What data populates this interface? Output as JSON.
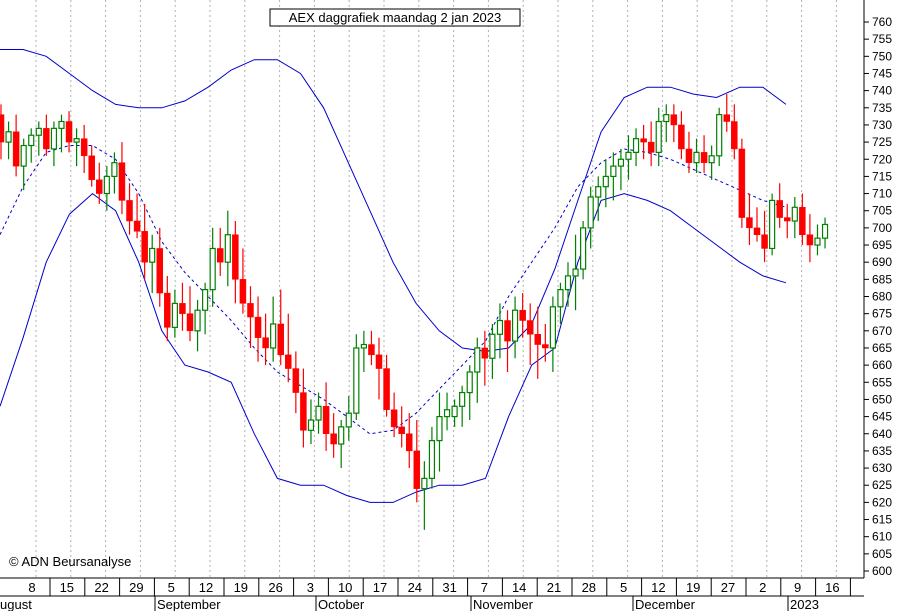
{
  "chart_data": {
    "type": "candlestick",
    "title": "AEX daggrafiek maandag 2 jan 2023",
    "copyright": "© ADN Beursanalyse",
    "ylim": [
      600,
      760
    ],
    "y_ticks": [
      600,
      605,
      610,
      615,
      620,
      625,
      630,
      635,
      640,
      645,
      650,
      655,
      660,
      665,
      670,
      675,
      680,
      685,
      690,
      695,
      700,
      705,
      710,
      715,
      720,
      725,
      730,
      735,
      740,
      745,
      750,
      755,
      760
    ],
    "x_ticks": [
      "8",
      "15",
      "22",
      "29",
      "5",
      "12",
      "19",
      "26",
      "3",
      "10",
      "17",
      "24",
      "31",
      "7",
      "14",
      "21",
      "28",
      "5",
      "12",
      "19",
      "27",
      "2",
      "9",
      "16"
    ],
    "months": [
      "ugust",
      "September",
      "October",
      "November",
      "December",
      "2023"
    ],
    "colors": {
      "up": "#008000",
      "down": "#ff0000",
      "band": "#0000cc",
      "grid": "#b0b0b0"
    },
    "candles": [
      [
        733,
        736,
        720,
        725
      ],
      [
        725,
        731,
        720,
        728
      ],
      [
        728,
        733,
        715,
        718
      ],
      [
        718,
        726,
        711,
        724
      ],
      [
        724,
        729,
        719,
        727
      ],
      [
        727,
        731,
        721,
        729
      ],
      [
        729,
        733,
        721,
        723
      ],
      [
        723,
        731,
        718,
        729
      ],
      [
        729,
        733,
        722,
        731
      ],
      [
        731,
        734,
        722,
        725
      ],
      [
        725,
        729,
        718,
        726
      ],
      [
        726,
        730,
        716,
        721
      ],
      [
        721,
        724,
        712,
        714
      ],
      [
        714,
        719,
        707,
        710
      ],
      [
        710,
        718,
        705,
        715
      ],
      [
        715,
        722,
        710,
        719
      ],
      [
        719,
        725,
        704,
        708
      ],
      [
        708,
        713,
        698,
        702
      ],
      [
        702,
        710,
        697,
        699
      ],
      [
        699,
        707,
        685,
        690
      ],
      [
        690,
        698,
        681,
        694
      ],
      [
        694,
        700,
        677,
        681
      ],
      [
        681,
        686,
        667,
        671
      ],
      [
        671,
        682,
        668,
        678
      ],
      [
        678,
        684,
        670,
        675
      ],
      [
        675,
        683,
        667,
        670
      ],
      [
        670,
        679,
        664,
        676
      ],
      [
        676,
        684,
        669,
        682
      ],
      [
        682,
        700,
        677,
        694
      ],
      [
        694,
        700,
        686,
        690
      ],
      [
        690,
        705,
        683,
        698
      ],
      [
        698,
        702,
        678,
        685
      ],
      [
        685,
        694,
        675,
        678
      ],
      [
        678,
        683,
        665,
        674
      ],
      [
        674,
        680,
        661,
        668
      ],
      [
        668,
        675,
        660,
        665
      ],
      [
        665,
        680,
        661,
        672
      ],
      [
        672,
        682,
        660,
        663
      ],
      [
        663,
        675,
        655,
        659
      ],
      [
        659,
        664,
        646,
        652
      ],
      [
        652,
        659,
        636,
        641
      ],
      [
        641,
        650,
        637,
        644
      ],
      [
        644,
        652,
        640,
        648
      ],
      [
        648,
        655,
        635,
        640
      ],
      [
        640,
        646,
        633,
        637
      ],
      [
        637,
        644,
        630,
        642
      ],
      [
        642,
        651,
        638,
        646
      ],
      [
        646,
        669,
        644,
        665
      ],
      [
        665,
        670,
        658,
        666
      ],
      [
        666,
        670,
        660,
        663
      ],
      [
        663,
        668,
        650,
        659
      ],
      [
        659,
        663,
        645,
        647
      ],
      [
        647,
        652,
        639,
        642
      ],
      [
        642,
        648,
        636,
        640
      ],
      [
        640,
        646,
        630,
        635
      ],
      [
        635,
        644,
        620,
        624
      ],
      [
        624,
        632,
        612,
        627
      ],
      [
        627,
        642,
        624,
        638
      ],
      [
        638,
        652,
        629,
        645
      ],
      [
        645,
        652,
        641,
        647
      ],
      [
        645,
        650,
        642,
        648
      ],
      [
        648,
        654,
        642,
        652
      ],
      [
        652,
        660,
        644,
        658
      ],
      [
        658,
        668,
        649,
        665
      ],
      [
        665,
        670,
        654,
        662
      ],
      [
        662,
        672,
        656,
        669
      ],
      [
        669,
        678,
        662,
        673
      ],
      [
        673,
        676,
        658,
        667
      ],
      [
        667,
        680,
        662,
        676
      ],
      [
        676,
        681,
        668,
        673
      ],
      [
        673,
        678,
        660,
        669
      ],
      [
        669,
        677,
        656,
        666
      ],
      [
        666,
        672,
        661,
        665
      ],
      [
        665,
        680,
        658,
        677
      ],
      [
        677,
        684,
        672,
        682
      ],
      [
        682,
        690,
        677,
        686
      ],
      [
        686,
        698,
        676,
        688
      ],
      [
        688,
        702,
        685,
        700
      ],
      [
        700,
        712,
        694,
        709
      ],
      [
        709,
        715,
        702,
        712
      ],
      [
        712,
        720,
        706,
        715
      ],
      [
        715,
        722,
        708,
        718
      ],
      [
        718,
        723,
        711,
        720
      ],
      [
        720,
        727,
        714,
        722
      ],
      [
        722,
        729,
        718,
        726
      ],
      [
        726,
        730,
        720,
        725
      ],
      [
        725,
        731,
        718,
        722
      ],
      [
        722,
        735,
        718,
        731
      ],
      [
        731,
        736,
        725,
        733
      ],
      [
        733,
        736,
        725,
        730
      ],
      [
        730,
        734,
        720,
        723
      ],
      [
        723,
        728,
        716,
        719
      ],
      [
        719,
        726,
        716,
        722
      ],
      [
        722,
        727,
        716,
        719
      ],
      [
        719,
        724,
        714,
        721
      ],
      [
        721,
        735,
        718,
        733
      ],
      [
        733,
        739,
        728,
        731
      ],
      [
        731,
        736,
        720,
        723
      ],
      [
        723,
        726,
        700,
        703
      ],
      [
        703,
        710,
        695,
        700
      ],
      [
        700,
        706,
        696,
        698
      ],
      [
        698,
        705,
        690,
        694
      ],
      [
        694,
        710,
        692,
        708
      ],
      [
        708,
        713,
        700,
        703
      ],
      [
        703,
        707,
        697,
        702
      ],
      [
        702,
        709,
        697,
        706
      ],
      [
        706,
        710,
        695,
        698
      ],
      [
        698,
        704,
        690,
        695
      ],
      [
        695,
        701,
        692,
        697
      ],
      [
        697,
        703,
        694,
        701
      ]
    ],
    "upper_band": [
      752,
      752,
      750,
      745,
      740,
      736,
      735,
      735,
      737,
      741,
      746,
      749,
      749,
      745,
      735,
      720,
      705,
      690,
      678,
      670,
      665,
      664,
      665,
      672,
      688,
      708,
      728,
      738,
      741,
      741,
      739,
      738,
      741,
      741,
      736
    ],
    "lower_band": [
      648,
      668,
      690,
      704,
      710,
      705,
      690,
      670,
      660,
      658,
      655,
      640,
      627,
      625,
      625,
      622,
      620,
      620,
      623,
      625,
      625,
      627,
      645,
      660,
      665,
      690,
      708,
      710,
      708,
      705,
      700,
      695,
      690,
      686,
      684
    ],
    "middle_band": [
      698,
      712,
      722,
      724,
      724,
      720,
      710,
      696,
      687,
      680,
      673,
      665,
      658,
      654,
      650,
      645,
      640,
      641,
      646,
      653,
      660,
      667,
      680,
      690,
      700,
      712,
      719,
      723,
      722,
      720,
      717,
      714,
      711,
      708,
      706
    ]
  }
}
